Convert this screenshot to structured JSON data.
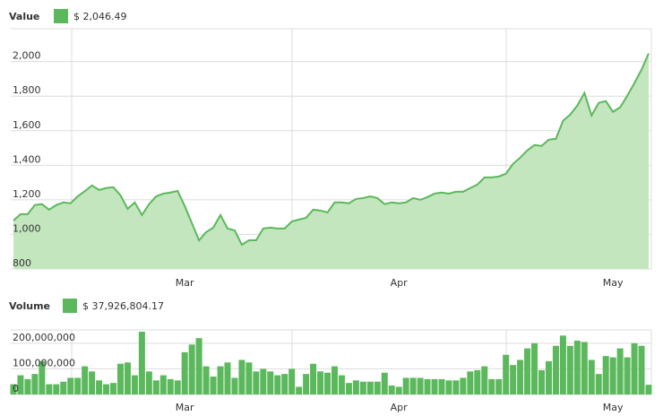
{
  "chart_data": [
    {
      "type": "area",
      "title": "Value",
      "legend_value": "$ 2,046.49",
      "color": "#5cb85c",
      "fill": "#c3e6bf",
      "categories": [
        null,
        null,
        null,
        null,
        null,
        null,
        null,
        null,
        null,
        null,
        null,
        null,
        null,
        null,
        null,
        null,
        null,
        null,
        null,
        null,
        null,
        null,
        null,
        null,
        "Mar",
        null,
        null,
        null,
        null,
        null,
        null,
        null,
        null,
        null,
        null,
        null,
        null,
        null,
        null,
        null,
        null,
        null,
        null,
        null,
        null,
        null,
        null,
        null,
        null,
        null,
        null,
        null,
        null,
        null,
        "Apr",
        null,
        null,
        null,
        null,
        null,
        null,
        null,
        null,
        null,
        null,
        null,
        null,
        null,
        null,
        null,
        null,
        null,
        null,
        null,
        null,
        null,
        null,
        null,
        null,
        null,
        null,
        null,
        null,
        null,
        "May",
        null,
        null,
        null,
        null,
        null
      ],
      "values": [
        1080,
        1117,
        1117,
        1170,
        1175,
        1143,
        1170,
        1185,
        1180,
        1220,
        1250,
        1283,
        1257,
        1268,
        1273,
        1226,
        1148,
        1185,
        1112,
        1175,
        1220,
        1236,
        1242,
        1252,
        1164,
        1065,
        966,
        1013,
        1039,
        1112,
        1034,
        1023,
        940,
        966,
        966,
        1034,
        1039,
        1034,
        1034,
        1075,
        1086,
        1096,
        1143,
        1138,
        1127,
        1185,
        1185,
        1180,
        1205,
        1210,
        1220,
        1210,
        1175,
        1185,
        1180,
        1185,
        1210,
        1200,
        1216,
        1236,
        1242,
        1236,
        1247,
        1247,
        1268,
        1288,
        1330,
        1330,
        1335,
        1351,
        1408,
        1444,
        1486,
        1517,
        1512,
        1548,
        1553,
        1657,
        1693,
        1745,
        1818,
        1688,
        1761,
        1771,
        1709,
        1735,
        1802,
        1875,
        1953,
        2046.49
      ],
      "ylim": [
        800,
        2190
      ],
      "yticks": [
        800,
        {
          "value": 1000,
          "label": "1,000"
        },
        {
          "value": 1200,
          "label": "1,200"
        },
        {
          "value": 1400,
          "label": "1,400"
        },
        {
          "value": 1600,
          "label": "1,600"
        },
        {
          "value": 1800,
          "label": "1,800"
        },
        {
          "value": 2000,
          "label": "2,000"
        }
      ],
      "grid": true
    },
    {
      "type": "bar",
      "title": "Volume",
      "legend_value": "$ 37,926,804.17",
      "color": "#5cb85c",
      "categories": [
        null,
        null,
        null,
        null,
        null,
        null,
        null,
        null,
        null,
        null,
        null,
        null,
        null,
        null,
        null,
        null,
        null,
        null,
        null,
        null,
        null,
        null,
        null,
        null,
        "Mar",
        null,
        null,
        null,
        null,
        null,
        null,
        null,
        null,
        null,
        null,
        null,
        null,
        null,
        null,
        null,
        null,
        null,
        null,
        null,
        null,
        null,
        null,
        null,
        null,
        null,
        null,
        null,
        null,
        null,
        "Apr",
        null,
        null,
        null,
        null,
        null,
        null,
        null,
        null,
        null,
        null,
        null,
        null,
        null,
        null,
        null,
        null,
        null,
        null,
        null,
        null,
        null,
        null,
        null,
        null,
        null,
        null,
        null,
        null,
        null,
        "May",
        null,
        null,
        null,
        null,
        null
      ],
      "values": [
        40000000,
        75000000,
        60000000,
        80000000,
        130000000,
        40000000,
        40000000,
        50000000,
        65000000,
        65000000,
        110000000,
        90000000,
        55000000,
        40000000,
        45000000,
        120000000,
        125000000,
        75000000,
        245000000,
        90000000,
        55000000,
        75000000,
        60000000,
        55000000,
        165000000,
        195000000,
        220000000,
        110000000,
        70000000,
        110000000,
        125000000,
        65000000,
        135000000,
        125000000,
        90000000,
        100000000,
        90000000,
        75000000,
        80000000,
        100000000,
        30000000,
        80000000,
        120000000,
        90000000,
        85000000,
        110000000,
        75000000,
        45000000,
        55000000,
        50000000,
        50000000,
        50000000,
        85000000,
        35000000,
        30000000,
        65000000,
        65000000,
        65000000,
        60000000,
        60000000,
        60000000,
        55000000,
        55000000,
        65000000,
        90000000,
        95000000,
        110000000,
        60000000,
        60000000,
        155000000,
        115000000,
        135000000,
        180000000,
        200000000,
        95000000,
        130000000,
        190000000,
        230000000,
        190000000,
        210000000,
        205000000,
        135000000,
        80000000,
        150000000,
        145000000,
        180000000,
        145000000,
        200000000,
        190000000,
        37926804.17
      ],
      "ylim": [
        0,
        252000000
      ],
      "yticks": [
        0,
        {
          "value": 100000000,
          "label": "100,000,000"
        },
        {
          "value": 200000000,
          "label": "200,000,000"
        }
      ],
      "grid": true
    }
  ]
}
